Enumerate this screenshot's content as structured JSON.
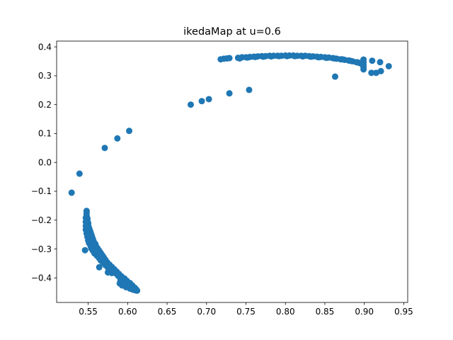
{
  "chart_data": {
    "type": "scatter",
    "title": "ikedaMap at u=0.6",
    "xlabel": "",
    "ylabel": "",
    "xlim": [
      0.51,
      0.955
    ],
    "ylim": [
      -0.485,
      0.42
    ],
    "grid": false,
    "marker_color": "#1f77b4",
    "x_ticks": [
      0.55,
      0.6,
      0.65,
      0.7,
      0.75,
      0.8,
      0.85,
      0.9,
      0.95
    ],
    "x_tick_labels": [
      "0.55",
      "0.60",
      "0.65",
      "0.70",
      "0.75",
      "0.80",
      "0.85",
      "0.90",
      "0.95"
    ],
    "y_ticks": [
      0.4,
      0.3,
      0.2,
      0.1,
      0.0,
      -0.1,
      -0.2,
      -0.3,
      -0.4
    ],
    "y_tick_labels": [
      "0.4",
      "0.3",
      "0.2",
      "0.1",
      "0.0",
      "−0.1",
      "−0.2",
      "−0.3",
      "−0.4"
    ],
    "points": [
      [
        0.529,
        -0.105
      ],
      [
        0.539,
        -0.039
      ],
      [
        0.571,
        0.05
      ],
      [
        0.587,
        0.083
      ],
      [
        0.602,
        0.109
      ],
      [
        0.546,
        -0.304
      ],
      [
        0.564,
        -0.363
      ],
      [
        0.548,
        -0.17
      ],
      [
        0.548,
        -0.168
      ],
      [
        0.548,
        -0.178
      ],
      [
        0.548,
        -0.186
      ],
      [
        0.549,
        -0.194
      ],
      [
        0.549,
        -0.202
      ],
      [
        0.55,
        -0.21
      ],
      [
        0.55,
        -0.218
      ],
      [
        0.551,
        -0.226
      ],
      [
        0.552,
        -0.234
      ],
      [
        0.553,
        -0.242
      ],
      [
        0.554,
        -0.25
      ],
      [
        0.555,
        -0.258
      ],
      [
        0.556,
        -0.266
      ],
      [
        0.557,
        -0.274
      ],
      [
        0.559,
        -0.282
      ],
      [
        0.56,
        -0.29
      ],
      [
        0.562,
        -0.298
      ],
      [
        0.564,
        -0.306
      ],
      [
        0.566,
        -0.314
      ],
      [
        0.568,
        -0.322
      ],
      [
        0.57,
        -0.33
      ],
      [
        0.572,
        -0.338
      ],
      [
        0.574,
        -0.346
      ],
      [
        0.577,
        -0.354
      ],
      [
        0.58,
        -0.362
      ],
      [
        0.583,
        -0.37
      ],
      [
        0.586,
        -0.378
      ],
      [
        0.589,
        -0.386
      ],
      [
        0.592,
        -0.394
      ],
      [
        0.596,
        -0.402
      ],
      [
        0.599,
        -0.41
      ],
      [
        0.603,
        -0.418
      ],
      [
        0.606,
        -0.426
      ],
      [
        0.609,
        -0.434
      ],
      [
        0.611,
        -0.44
      ],
      [
        0.612,
        -0.444
      ],
      [
        0.607,
        -0.441
      ],
      [
        0.603,
        -0.437
      ],
      [
        0.598,
        -0.432
      ],
      [
        0.593,
        -0.426
      ],
      [
        0.59,
        -0.419
      ],
      [
        0.592,
        -0.412
      ],
      [
        0.594,
        -0.405
      ],
      [
        0.591,
        -0.399
      ],
      [
        0.588,
        -0.393
      ],
      [
        0.586,
        -0.386
      ],
      [
        0.583,
        -0.382
      ],
      [
        0.58,
        -0.383
      ],
      [
        0.578,
        -0.378
      ],
      [
        0.575,
        -0.381
      ],
      [
        0.578,
        -0.372
      ],
      [
        0.575,
        -0.364
      ],
      [
        0.572,
        -0.356
      ],
      [
        0.569,
        -0.348
      ],
      [
        0.566,
        -0.34
      ],
      [
        0.564,
        -0.332
      ],
      [
        0.561,
        -0.323
      ],
      [
        0.558,
        -0.315
      ],
      [
        0.556,
        -0.306
      ],
      [
        0.554,
        -0.298
      ],
      [
        0.553,
        -0.289
      ],
      [
        0.551,
        -0.279
      ],
      [
        0.55,
        -0.27
      ],
      [
        0.549,
        -0.258
      ],
      [
        0.548,
        -0.246
      ],
      [
        0.547,
        -0.233
      ],
      [
        0.547,
        -0.22
      ],
      [
        0.547,
        -0.206
      ],
      [
        0.547,
        -0.192
      ],
      [
        0.591,
        -0.408
      ],
      [
        0.595,
        -0.422
      ],
      [
        0.6,
        -0.43
      ],
      [
        0.605,
        -0.438
      ],
      [
        0.61,
        -0.443
      ],
      [
        0.68,
        0.2
      ],
      [
        0.694,
        0.212
      ],
      [
        0.703,
        0.219
      ],
      [
        0.729,
        0.239
      ],
      [
        0.754,
        0.251
      ],
      [
        0.863,
        0.297
      ],
      [
        0.915,
        0.31
      ],
      [
        0.921,
        0.316
      ],
      [
        0.92,
        0.347
      ],
      [
        0.931,
        0.333
      ],
      [
        0.909,
        0.31
      ],
      [
        0.899,
        0.322
      ],
      [
        0.899,
        0.33
      ],
      [
        0.898,
        0.338
      ],
      [
        0.899,
        0.346
      ],
      [
        0.899,
        0.356
      ],
      [
        0.91,
        0.352
      ],
      [
        0.718,
        0.357
      ],
      [
        0.722,
        0.359
      ],
      [
        0.726,
        0.36
      ],
      [
        0.729,
        0.361
      ],
      [
        0.74,
        0.362
      ],
      [
        0.745,
        0.364
      ],
      [
        0.75,
        0.364
      ],
      [
        0.755,
        0.365
      ],
      [
        0.76,
        0.366
      ],
      [
        0.765,
        0.367
      ],
      [
        0.77,
        0.368
      ],
      [
        0.775,
        0.368
      ],
      [
        0.78,
        0.369
      ],
      [
        0.785,
        0.369
      ],
      [
        0.79,
        0.369
      ],
      [
        0.795,
        0.369
      ],
      [
        0.8,
        0.37
      ],
      [
        0.805,
        0.37
      ],
      [
        0.81,
        0.37
      ],
      [
        0.815,
        0.369
      ],
      [
        0.82,
        0.369
      ],
      [
        0.825,
        0.369
      ],
      [
        0.83,
        0.368
      ],
      [
        0.835,
        0.367
      ],
      [
        0.84,
        0.366
      ],
      [
        0.845,
        0.365
      ],
      [
        0.85,
        0.364
      ],
      [
        0.855,
        0.363
      ],
      [
        0.86,
        0.361
      ],
      [
        0.865,
        0.359
      ],
      [
        0.87,
        0.357
      ],
      [
        0.875,
        0.355
      ],
      [
        0.88,
        0.353
      ],
      [
        0.885,
        0.35
      ],
      [
        0.89,
        0.347
      ],
      [
        0.894,
        0.344
      ],
      [
        0.897,
        0.341
      ],
      [
        0.899,
        0.338
      ],
      [
        0.742,
        0.36
      ],
      [
        0.752,
        0.363
      ],
      [
        0.762,
        0.365
      ],
      [
        0.772,
        0.366
      ],
      [
        0.782,
        0.367
      ],
      [
        0.792,
        0.368
      ],
      [
        0.802,
        0.368
      ],
      [
        0.812,
        0.368
      ],
      [
        0.822,
        0.367
      ],
      [
        0.832,
        0.366
      ],
      [
        0.842,
        0.364
      ],
      [
        0.852,
        0.362
      ],
      [
        0.862,
        0.36
      ],
      [
        0.872,
        0.357
      ],
      [
        0.882,
        0.352
      ],
      [
        0.892,
        0.346
      ],
      [
        0.896,
        0.343
      ]
    ]
  }
}
